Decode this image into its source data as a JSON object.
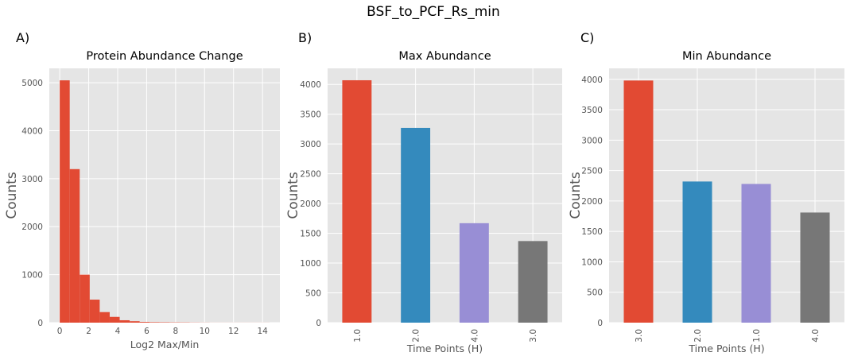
{
  "figure": {
    "suptitle": "BSF_to_PCF_Rs_min",
    "colors": {
      "panel_bg": "#E5E5E5",
      "grid": "#FFFFFF",
      "red": "#E24A33",
      "blue": "#348ABD",
      "purple": "#988ED5",
      "gray": "#777777"
    }
  },
  "chart_data": [
    {
      "panel_letter": "A)",
      "type": "bar",
      "subtype": "histogram",
      "title": "Protein Abundance Change",
      "xlabel": "Log2 Max/Min",
      "ylabel": "Counts",
      "xlim": [
        -0.72,
        15.2
      ],
      "ylim": [
        0,
        5300
      ],
      "xticks": [
        "0",
        "2",
        "4",
        "6",
        "8",
        "10",
        "12",
        "14"
      ],
      "yticks": [
        "0",
        "1000",
        "2000",
        "3000",
        "4000",
        "5000"
      ],
      "bin_edges": [
        0,
        0.69,
        1.38,
        2.07,
        2.76,
        3.45,
        4.14,
        4.83,
        5.52,
        6.21,
        6.9,
        7.59,
        8.28,
        8.97,
        9.66,
        10.35,
        11.04,
        11.73,
        12.42,
        13.11,
        13.8,
        14.49
      ],
      "values": [
        5050,
        3200,
        1000,
        480,
        220,
        120,
        50,
        30,
        15,
        10,
        8,
        6,
        5,
        3,
        2,
        1,
        1,
        1,
        1,
        1,
        1
      ],
      "color": "#E24A33",
      "grid": true
    },
    {
      "panel_letter": "B)",
      "type": "bar",
      "title": "Max Abundance",
      "xlabel": "Time Points (H)",
      "ylabel": "Counts",
      "categories": [
        "1.0",
        "2.0",
        "4.0",
        "3.0"
      ],
      "values": [
        4070,
        3270,
        1670,
        1370
      ],
      "colors": [
        "#E24A33",
        "#348ABD",
        "#988ED5",
        "#777777"
      ],
      "ylim": [
        0,
        4270
      ],
      "yticks": [
        "0",
        "500",
        "1000",
        "1500",
        "2000",
        "2500",
        "3000",
        "3500",
        "4000"
      ],
      "grid": true
    },
    {
      "panel_letter": "C)",
      "type": "bar",
      "title": "Min Abundance",
      "xlabel": "Time Points (H)",
      "ylabel": "Counts",
      "categories": [
        "3.0",
        "2.0",
        "1.0",
        "4.0"
      ],
      "values": [
        3980,
        2320,
        2280,
        1810
      ],
      "colors": [
        "#E24A33",
        "#348ABD",
        "#988ED5",
        "#777777"
      ],
      "ylim": [
        0,
        4180
      ],
      "yticks": [
        "0",
        "500",
        "1000",
        "1500",
        "2000",
        "2500",
        "3000",
        "3500",
        "4000"
      ],
      "grid": true
    }
  ]
}
